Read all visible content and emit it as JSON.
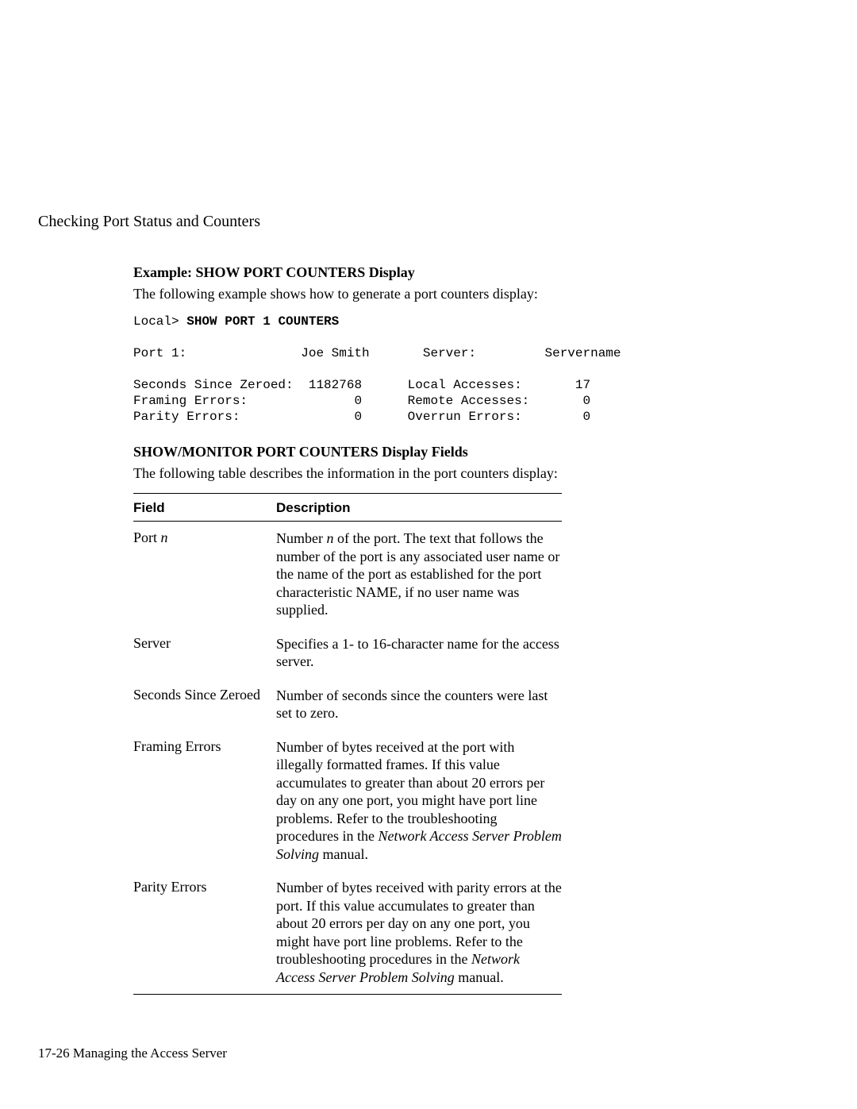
{
  "section_title": "Checking Port Status and Counters",
  "example": {
    "heading": "Example: SHOW PORT COUNTERS Display",
    "intro": "The following example shows how to generate a port counters display:",
    "prompt": "Local> ",
    "command": "SHOW PORT 1 COUNTERS",
    "output_lines": {
      "port_label": "Port 1:",
      "user": "Joe Smith",
      "server_label": "Server:",
      "server_name": "Servername",
      "rows": [
        {
          "l_label": "Seconds Since Zeroed:",
          "l_val": "1182768",
          "r_label": "Local Accesses:",
          "r_val": "17"
        },
        {
          "l_label": "Framing Errors:",
          "l_val": "0",
          "r_label": "Remote Accesses:",
          "r_val": "0"
        },
        {
          "l_label": "Parity Errors:",
          "l_val": "0",
          "r_label": "Overrun Errors:",
          "r_val": "0"
        }
      ]
    }
  },
  "fields": {
    "heading": "SHOW/MONITOR PORT COUNTERS Display Fields",
    "intro": "The following table describes the information in the port counters display:",
    "columns": {
      "field": "Field",
      "description": "Description"
    },
    "rows": [
      {
        "field_pre": "Port ",
        "field_italic": "n",
        "desc_parts": [
          {
            "t": "Number "
          },
          {
            "t": "n",
            "italic": true
          },
          {
            "t": " of the port. The text that follows the number of the port is any associated user name or the name of the port as established for the port characteristic NAME, if no user name was supplied."
          }
        ]
      },
      {
        "field": "Server",
        "desc_parts": [
          {
            "t": "Specifies a 1- to 16-character name for the access server."
          }
        ]
      },
      {
        "field": "Seconds Since Zeroed",
        "desc_parts": [
          {
            "t": "Number of seconds since the counters were last set to zero."
          }
        ]
      },
      {
        "field": "Framing Errors",
        "desc_parts": [
          {
            "t": "Number of bytes received at the port with illegally formatted frames. If this value accumulates to greater than about 20 errors per day on any one port, you might have port line problems. Refer to the troubleshooting procedures in the "
          },
          {
            "t": "Network Access Server Problem Solving",
            "italic": true
          },
          {
            "t": " manual."
          }
        ]
      },
      {
        "field": "Parity Errors",
        "desc_parts": [
          {
            "t": "Number of bytes received with parity errors at the port. If this value accumulates to greater than about 20 errors per day on any one port, you might have port line problems. Refer to the troubleshooting procedures in the "
          },
          {
            "t": "Network Access Server Problem Solving",
            "italic": true
          },
          {
            "t": " manual."
          }
        ]
      }
    ]
  },
  "footer": "17-26  Managing the Access Server",
  "colors": {
    "text": "#000000",
    "background": "#ffffff",
    "rule": "#000000"
  }
}
